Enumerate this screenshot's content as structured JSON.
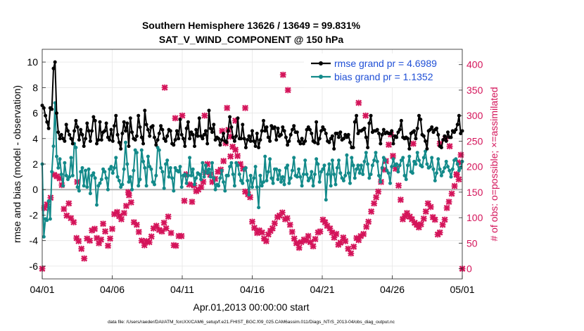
{
  "chart_data": {
    "type": "line",
    "title_line1": "Southern Hemisphere 13626 / 13649 = 99.831%",
    "title_line2": "SAT_V_WIND_COMPONENT @ 150 hPa",
    "ylabel_left": "rmse and bias (model - observation)",
    "ylabel_right": "# of obs: o=possible; ×=assimilated",
    "xlabel": "Apr.01,2013 00:00:00 start",
    "footnote": "data file: /Users/raeder/DAI/ATM_forcXX/CAM6_setup/f.e21.FHIST_BGC.f09_025.CAM6assim.011/Diags_NTrS_2013-04/obs_diag_output.nc",
    "xlim": [
      0,
      30
    ],
    "ylim_left": [
      -7,
      11
    ],
    "ylim_right": [
      -20,
      430
    ],
    "left_ticks": [
      -6,
      -4,
      -2,
      0,
      2,
      4,
      6,
      8,
      10
    ],
    "right_ticks": [
      0,
      50,
      100,
      150,
      200,
      250,
      300,
      350,
      400
    ],
    "x_ticks": [
      {
        "value": 0,
        "label": "04/01"
      },
      {
        "value": 5,
        "label": "04/06"
      },
      {
        "value": 10,
        "label": "04/11"
      },
      {
        "value": 15,
        "label": "04/16"
      },
      {
        "value": 20,
        "label": "04/21"
      },
      {
        "value": 25,
        "label": "04/26"
      },
      {
        "value": 30,
        "label": "05/01"
      }
    ],
    "zero_line": 0,
    "legend_position": "top-right",
    "colors": {
      "rmse": "#000000",
      "bias": "#138a8a",
      "obs": "#d4145a",
      "legend_text": "#1f4fd6",
      "zero": "#b3b3b3",
      "grid": "#e6e6e6"
    },
    "series": [
      {
        "name": "rmse grand pr = 4.6989",
        "key": "rmse",
        "axis": "left",
        "values": [
          6.6,
          6.4,
          5.8,
          5.3,
          4.8,
          6.4,
          6.3,
          9.5,
          10.0,
          6.0,
          4.5,
          4.0,
          4.3,
          4.0,
          3.8,
          5.1,
          4.6,
          4.3,
          4.0,
          3.6,
          4.6,
          5.4,
          4.9,
          3.9,
          4.7,
          4.3,
          3.4,
          4.0,
          5.2,
          4.6,
          3.8,
          4.6,
          5.7,
          5.4,
          3.6,
          3.9,
          5.3,
          3.9,
          4.5,
          4.6,
          5.2,
          4.1,
          3.9,
          4.7,
          3.8,
          5.0,
          5.8,
          4.3,
          3.7,
          3.2,
          4.4,
          5.3,
          4.6,
          5.2,
          3.4,
          5.6,
          4.5,
          4.0,
          3.9,
          4.2,
          5.8,
          4.9,
          4.1,
          3.6,
          6.2,
          5.1,
          4.7,
          4.2,
          4.9,
          5.0,
          4.1,
          3.5,
          3.9,
          4.4,
          5.0,
          4.7,
          4.0,
          3.8,
          4.2,
          4.7,
          4.6,
          3.6,
          3.5,
          3.9,
          4.6,
          4.0,
          5.5,
          4.3,
          4.0,
          3.4,
          4.8,
          5.3,
          4.0,
          4.5,
          4.3,
          3.4,
          4.7,
          4.2,
          5.6,
          4.2,
          4.0,
          4.3,
          4.6,
          3.6,
          6.2,
          4.8,
          4.5,
          5.1,
          3.9,
          4.1,
          4.0,
          3.5,
          3.9,
          4.4,
          3.8,
          3.7,
          4.6,
          5.7,
          4.9,
          4.1,
          3.8,
          4.2,
          5.6,
          4.0,
          4.0,
          5.1,
          4.0,
          3.3,
          3.9,
          4.2,
          3.8,
          4.6,
          3.8,
          3.4,
          4.4,
          3.3,
          3.9,
          4.6,
          5.4,
          4.6,
          4.9,
          4.1,
          3.8,
          5.0,
          4.8,
          4.9,
          3.9,
          4.8,
          4.2,
          4.3,
          4.9,
          4.6,
          4.1,
          3.5,
          3.8,
          4.3,
          4.7,
          5.0,
          4.5,
          4.5,
          3.8,
          3.6,
          4.0,
          3.6,
          3.8,
          4.7,
          4.9,
          4.7,
          4.4,
          3.8,
          3.7,
          5.3,
          3.6,
          4.0,
          4.6,
          4.9,
          4.7,
          4.4,
          3.8,
          3.7,
          4.0,
          4.2,
          3.2,
          4.4,
          4.4,
          4.1,
          4.5,
          3.9,
          4.0,
          4.3,
          4.1,
          4.3,
          3.7,
          3.3,
          3.3,
          5.3,
          5.8,
          4.4,
          4.6,
          4.6,
          4.7,
          4.8,
          4.1,
          3.3,
          5.2,
          5.8,
          4.5,
          4.6,
          4.6,
          4.7,
          4.4,
          3.6,
          4.3,
          4.7,
          4.4,
          4.5,
          4.4,
          4.4,
          4.6,
          3.6,
          4.2,
          4.1,
          4.5,
          4.7,
          5.4,
          4.1,
          4.0,
          4.1,
          4.0,
          3.2,
          4.4,
          4.5,
          4.6,
          4.0,
          4.8,
          5.8,
          5.5,
          4.3,
          4.2,
          3.8,
          3.2,
          4.6,
          4.7,
          4.9,
          4.5,
          4.7,
          4.8,
          4.3,
          3.4,
          3.3,
          3.9,
          4.2,
          3.8,
          4.5,
          4.1,
          4.1,
          4.6,
          4.5,
          4.7,
          5.1,
          5.8,
          4.4,
          4.6
        ]
      },
      {
        "name": "bias grand pr = 1.1352",
        "key": "bias",
        "axis": "left",
        "values": [
          2.0,
          -3.7,
          -2.3,
          -2.4,
          -0.9,
          -2.3,
          1.4,
          3.4,
          6.8,
          2.6,
          1.7,
          2.4,
          1.2,
          0.3,
          2.1,
          1.1,
          0.8,
          1.0,
          2.5,
          1.1,
          3.6,
          3.3,
          0.2,
          -0.1,
          1.4,
          1.7,
          0.3,
          1.5,
          0.2,
          1.6,
          -0.3,
          1.1,
          1.3,
          0.9,
          -1.2,
          0.3,
          0.5,
          0.8,
          1.6,
          1.4,
          0.9,
          0.0,
          1.6,
          1.8,
          1.3,
          1.7,
          2.5,
          1.0,
          0.7,
          0.2,
          0.4,
          1.6,
          3.7,
          2.0,
          0.6,
          1.0,
          0.0,
          1.5,
          3.1,
          2.9,
          0.3,
          0.8,
          3.1,
          2.2,
          1.7,
          0.3,
          2.6,
          1.8,
          1.6,
          0.6,
          0.4,
          1.1,
          3.3,
          3.1,
          1.7,
          1.4,
          0.1,
          2.0,
          2.3,
          1.0,
          1.7,
          0.9,
          -0.1,
          1.7,
          1.5,
          1.4,
          1.8,
          0.2,
          1.1,
          1.2,
          0.5,
          1.1,
          2.5,
          1.1,
          1.6,
          0.4,
          0.9,
          1.3,
          1.2,
          0.8,
          2.1,
          1.0,
          1.9,
          1.3,
          1.6,
          1.0,
          2.1,
          0.9,
          0.0,
          0.4,
          0.3,
          0.9,
          1.5,
          0.6,
          -0.1,
          1.1,
          1.1,
          1.8,
          2.1,
          1.2,
          0.3,
          2.1,
          1.9,
          1.2,
          0.7,
          0.5,
          1.6,
          1.7,
          0.7,
          -0.4,
          1.1,
          0.2,
          0.9,
          1.8,
          0.2,
          -1.4,
          1.1,
          0.3,
          0.6,
          2.6,
          0.7,
          1.4,
          2.4,
          0.9,
          0.5,
          1.6,
          1.6,
          0.8,
          1.5,
          0.6,
          1.0,
          0.4,
          1.7,
          1.9,
          0.5,
          0.9,
          1.5,
          2.5,
          1.1,
          1.0,
          1.6,
          1.0,
          0.3,
          1.2,
          2.3,
          1.2,
          0.7,
          0.9,
          1.4,
          0.3,
          1.2,
          2.4,
          2.0,
          0.6,
          1.4,
          1.6,
          1.9,
          -0.8,
          1.2,
          2.0,
          0.3,
          2.3,
          1.2,
          0.4,
          1.7,
          2.3,
          1.3,
          0.9,
          0.7,
          1.1,
          2.7,
          1.3,
          0.5,
          2.5,
          1.9,
          0.9,
          1.6,
          1.9,
          1.3,
          1.9,
          1.2,
          2.2,
          2.9,
          2.0,
          0.9,
          1.2,
          1.9,
          2.3,
          2.9,
          2.2,
          1.1,
          0.6,
          1.7,
          2.5,
          2.3,
          1.5,
          1.3,
          0.5,
          1.8,
          2.4,
          1.9,
          2.0,
          1.4,
          1.9,
          2.3,
          2.5,
          1.1,
          0.8,
          1.9,
          2.6,
          1.4,
          1.3,
          2.2,
          2.0,
          2.9,
          2.3,
          1.9,
          1.8,
          2.5,
          3.0,
          2.0,
          1.7,
          1.8,
          2.5,
          1.6,
          0.7,
          1.3,
          2.4,
          1.6,
          1.1,
          1.4,
          1.7,
          2.2,
          1.8,
          1.5,
          1.0,
          1.6,
          2.3,
          2.4,
          2.0,
          1.5,
          1.7,
          2.2
        ]
      }
    ],
    "obs_points": [
      [
        0.0,
        0
      ],
      [
        0.15,
        119
      ],
      [
        0.35,
        126
      ],
      [
        0.6,
        139
      ],
      [
        0.85,
        184
      ],
      [
        1.05,
        181
      ],
      [
        1.25,
        177
      ],
      [
        1.4,
        164
      ],
      [
        1.55,
        117
      ],
      [
        1.75,
        104
      ],
      [
        1.9,
        128
      ],
      [
        2.05,
        99
      ],
      [
        2.25,
        91
      ],
      [
        2.45,
        60
      ],
      [
        2.6,
        54
      ],
      [
        2.8,
        39
      ],
      [
        3.0,
        20
      ],
      [
        3.2,
        59
      ],
      [
        3.4,
        55
      ],
      [
        3.55,
        75
      ],
      [
        3.75,
        78
      ],
      [
        3.9,
        60
      ],
      [
        4.05,
        50
      ],
      [
        4.2,
        57
      ],
      [
        4.35,
        88
      ],
      [
        4.5,
        73
      ],
      [
        4.7,
        45
      ],
      [
        4.85,
        59
      ],
      [
        5.0,
        78
      ],
      [
        5.15,
        107
      ],
      [
        5.35,
        111
      ],
      [
        5.5,
        103
      ],
      [
        5.65,
        97
      ],
      [
        5.85,
        109
      ],
      [
        6.0,
        123
      ],
      [
        6.2,
        144
      ],
      [
        6.35,
        130
      ],
      [
        6.55,
        91
      ],
      [
        6.75,
        86
      ],
      [
        6.9,
        72
      ],
      [
        7.1,
        55
      ],
      [
        7.3,
        46
      ],
      [
        7.45,
        54
      ],
      [
        7.65,
        52
      ],
      [
        7.8,
        63
      ],
      [
        7.95,
        79
      ],
      [
        8.15,
        84
      ],
      [
        8.35,
        76
      ],
      [
        8.55,
        73
      ],
      [
        8.7,
        90
      ],
      [
        8.85,
        79
      ],
      [
        9.0,
        102
      ],
      [
        9.2,
        70
      ],
      [
        9.4,
        46
      ],
      [
        9.55,
        45
      ],
      [
        9.75,
        64
      ],
      [
        9.95,
        64
      ],
      [
        10.15,
        133
      ],
      [
        10.3,
        185
      ],
      [
        10.5,
        165
      ],
      [
        10.7,
        131
      ],
      [
        10.85,
        163
      ],
      [
        11.0,
        152
      ],
      [
        11.15,
        155
      ],
      [
        11.35,
        160
      ],
      [
        11.5,
        170
      ],
      [
        11.65,
        189
      ],
      [
        11.8,
        205
      ],
      [
        12.0,
        184
      ],
      [
        12.15,
        170
      ],
      [
        12.35,
        176
      ],
      [
        12.55,
        190
      ],
      [
        12.75,
        194
      ],
      [
        12.95,
        211
      ],
      [
        13.1,
        246
      ],
      [
        13.3,
        272
      ],
      [
        13.45,
        259
      ],
      [
        13.6,
        239
      ],
      [
        13.8,
        233
      ],
      [
        13.95,
        221
      ],
      [
        14.15,
        205
      ],
      [
        14.35,
        196
      ],
      [
        14.5,
        151
      ],
      [
        14.7,
        146
      ],
      [
        14.85,
        140
      ],
      [
        15.0,
        92
      ],
      [
        15.15,
        80
      ],
      [
        15.35,
        70
      ],
      [
        15.5,
        75
      ],
      [
        15.7,
        71
      ],
      [
        15.85,
        59
      ],
      [
        16.0,
        54
      ],
      [
        16.15,
        67
      ],
      [
        16.3,
        74
      ],
      [
        16.45,
        79
      ],
      [
        16.6,
        89
      ],
      [
        16.8,
        101
      ],
      [
        16.95,
        104
      ],
      [
        17.15,
        110
      ],
      [
        17.35,
        97
      ],
      [
        17.5,
        99
      ],
      [
        17.7,
        86
      ],
      [
        17.85,
        72
      ],
      [
        18.0,
        59
      ],
      [
        18.15,
        50
      ],
      [
        18.35,
        41
      ],
      [
        18.5,
        52
      ],
      [
        18.7,
        57
      ],
      [
        18.85,
        55
      ],
      [
        19.0,
        64
      ],
      [
        19.15,
        52
      ],
      [
        19.35,
        44
      ],
      [
        19.5,
        58
      ],
      [
        19.7,
        71
      ],
      [
        19.85,
        73
      ],
      [
        20.05,
        96
      ],
      [
        20.2,
        91
      ],
      [
        20.35,
        84
      ],
      [
        20.55,
        79
      ],
      [
        20.7,
        71
      ],
      [
        20.85,
        61
      ],
      [
        21.0,
        68
      ],
      [
        21.15,
        47
      ],
      [
        21.3,
        51
      ],
      [
        21.5,
        61
      ],
      [
        21.65,
        54
      ],
      [
        21.85,
        39
      ],
      [
        22.05,
        30
      ],
      [
        22.25,
        43
      ],
      [
        22.45,
        60
      ],
      [
        22.6,
        56
      ],
      [
        22.75,
        64
      ],
      [
        22.95,
        68
      ],
      [
        23.15,
        82
      ],
      [
        23.3,
        92
      ],
      [
        23.5,
        112
      ],
      [
        23.7,
        128
      ],
      [
        23.85,
        140
      ],
      [
        24.0,
        151
      ],
      [
        24.2,
        170
      ],
      [
        24.4,
        194
      ],
      [
        24.55,
        211
      ],
      [
        24.75,
        243
      ],
      [
        24.9,
        263
      ],
      [
        25.05,
        221
      ],
      [
        25.25,
        196
      ],
      [
        25.45,
        163
      ],
      [
        25.6,
        135
      ],
      [
        25.75,
        97
      ],
      [
        25.9,
        103
      ],
      [
        26.05,
        109
      ],
      [
        26.25,
        102
      ],
      [
        26.4,
        97
      ],
      [
        26.6,
        90
      ],
      [
        26.75,
        86
      ],
      [
        26.9,
        81
      ],
      [
        27.05,
        87
      ],
      [
        27.25,
        98
      ],
      [
        27.4,
        112
      ],
      [
        27.55,
        128
      ],
      [
        27.75,
        121
      ],
      [
        27.9,
        101
      ],
      [
        28.05,
        96
      ],
      [
        28.25,
        67
      ],
      [
        28.4,
        71
      ],
      [
        28.6,
        86
      ],
      [
        28.75,
        96
      ],
      [
        28.9,
        119
      ],
      [
        29.05,
        131
      ],
      [
        29.25,
        147
      ],
      [
        29.45,
        162
      ],
      [
        29.6,
        184
      ],
      [
        29.8,
        208
      ],
      [
        29.9,
        223
      ],
      [
        30.0,
        0
      ]
    ],
    "extra_obs_points": [
      [
        8.75,
        355
      ],
      [
        13.2,
        315
      ],
      [
        13.8,
        290
      ],
      [
        17.2,
        380
      ],
      [
        17.55,
        350
      ],
      [
        22.6,
        325
      ],
      [
        23.1,
        300
      ],
      [
        26.5,
        245
      ],
      [
        28.4,
        245
      ],
      [
        28.8,
        255
      ],
      [
        29.1,
        240
      ],
      [
        29.6,
        185
      ],
      [
        29.75,
        175
      ],
      [
        6.15,
        150
      ],
      [
        10.0,
        300
      ],
      [
        14.5,
        315
      ],
      [
        12.85,
        270
      ],
      [
        9.5,
        295
      ],
      [
        11.6,
        300
      ],
      [
        13.45,
        220
      ],
      [
        2.5,
        170
      ]
    ]
  }
}
